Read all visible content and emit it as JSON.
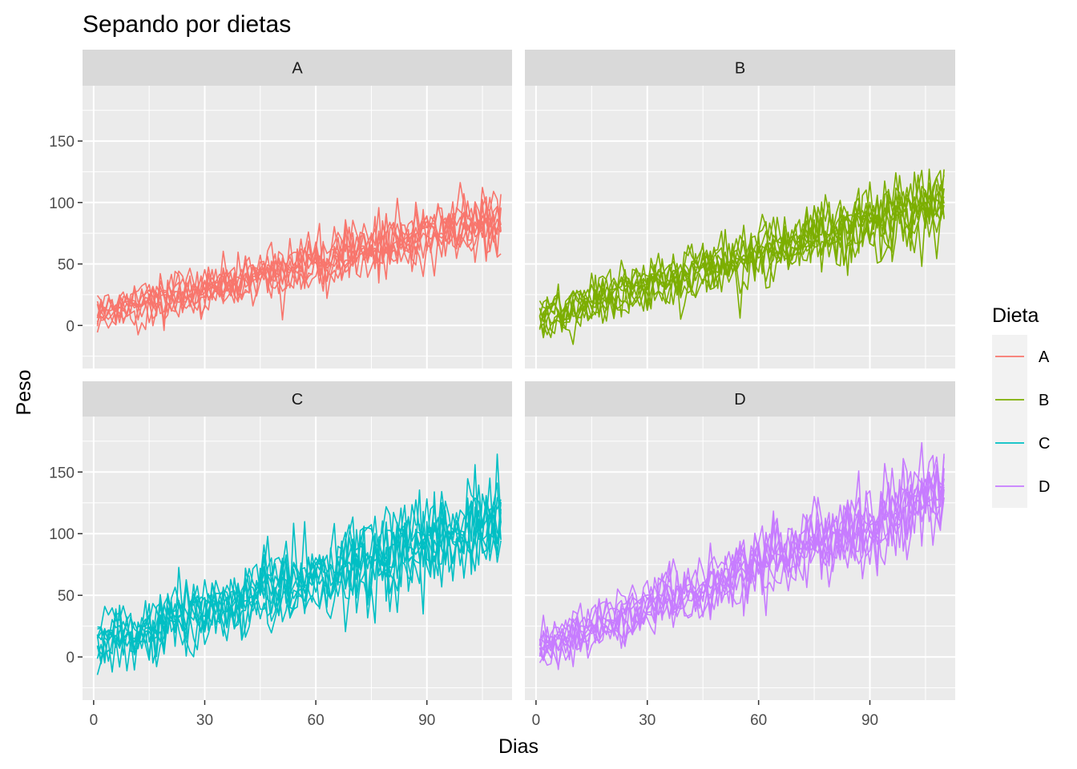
{
  "chart_data": {
    "type": "line",
    "title": "Sepando por dietas",
    "xlabel": "Dias",
    "ylabel": "Peso",
    "xlim": [
      -3,
      113
    ],
    "ylim": [
      -35,
      195
    ],
    "x_ticks": [
      0,
      30,
      60,
      90
    ],
    "y_ticks": [
      0,
      50,
      100,
      150
    ],
    "grid": true,
    "facets": [
      "A",
      "B",
      "C",
      "D"
    ],
    "legend": {
      "title": "Dieta",
      "placement": "right",
      "entries": [
        "A",
        "B",
        "C",
        "D"
      ]
    },
    "colors": {
      "A": "#F8766D",
      "B": "#7CAE00",
      "C": "#00BFC4",
      "D": "#C77CFF"
    },
    "series_per_facet": 10,
    "x_range": [
      1,
      110
    ],
    "trend": {
      "A": {
        "start": 8,
        "end": 85,
        "noise": 12
      },
      "B": {
        "start": 5,
        "end": 100,
        "noise": 13
      },
      "C": {
        "start": 12,
        "end": 110,
        "noise": 17
      },
      "D": {
        "start": 5,
        "end": 130,
        "noise": 15
      }
    }
  }
}
